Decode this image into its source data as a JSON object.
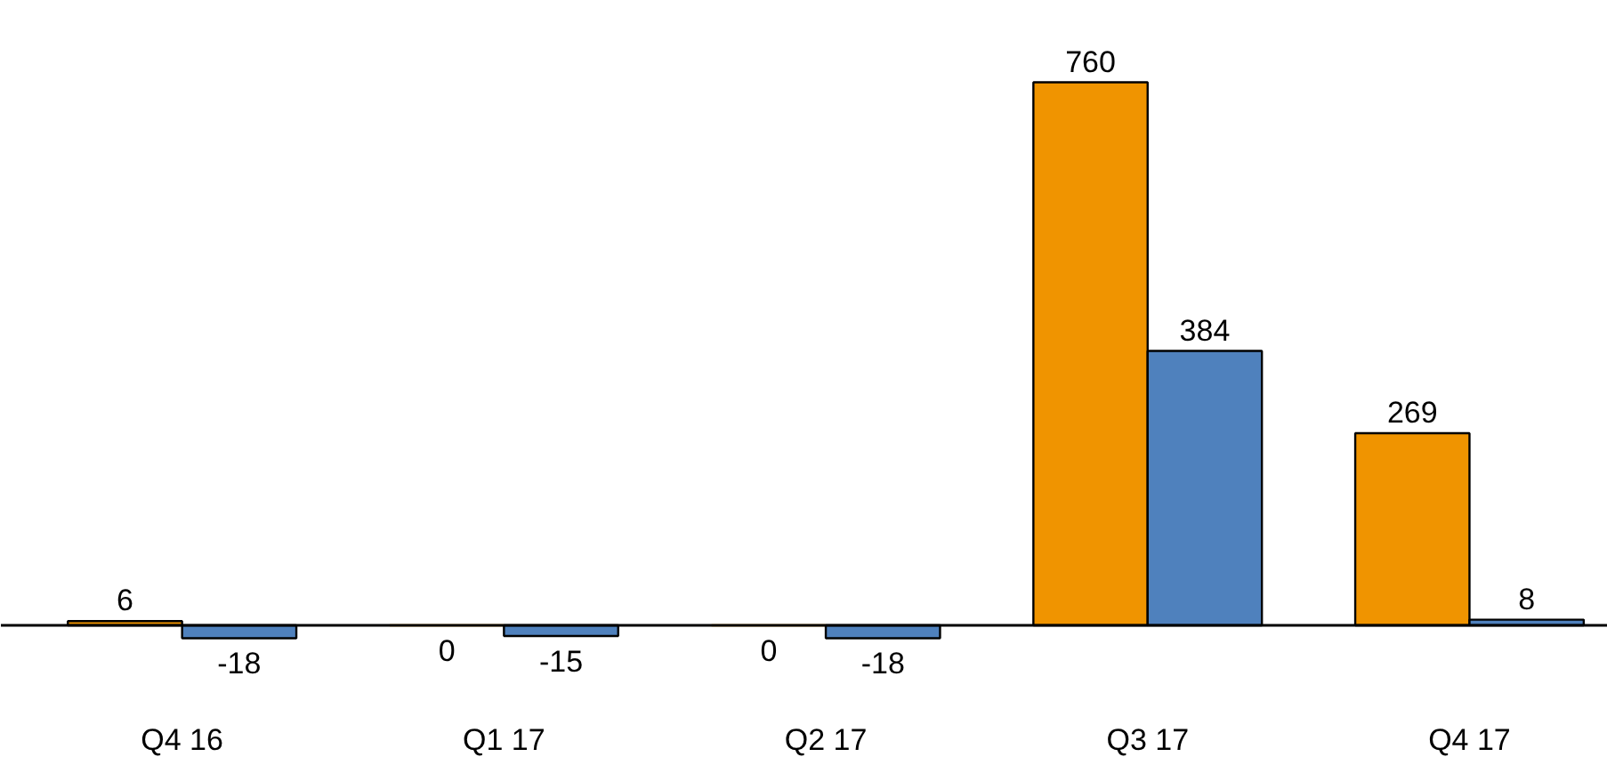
{
  "chart_data": {
    "type": "bar",
    "categories": [
      "Q4 16",
      "Q1 17",
      "Q2 17",
      "Q3 17",
      "Q4 17"
    ],
    "series": [
      {
        "color": "#f09400",
        "values": [
          6,
          0,
          0,
          760,
          269
        ]
      },
      {
        "color": "#4f81bd",
        "values": [
          -18,
          -15,
          -18,
          384,
          8
        ]
      }
    ],
    "data_labels": true,
    "grid": false,
    "tick_labels": "x"
  }
}
